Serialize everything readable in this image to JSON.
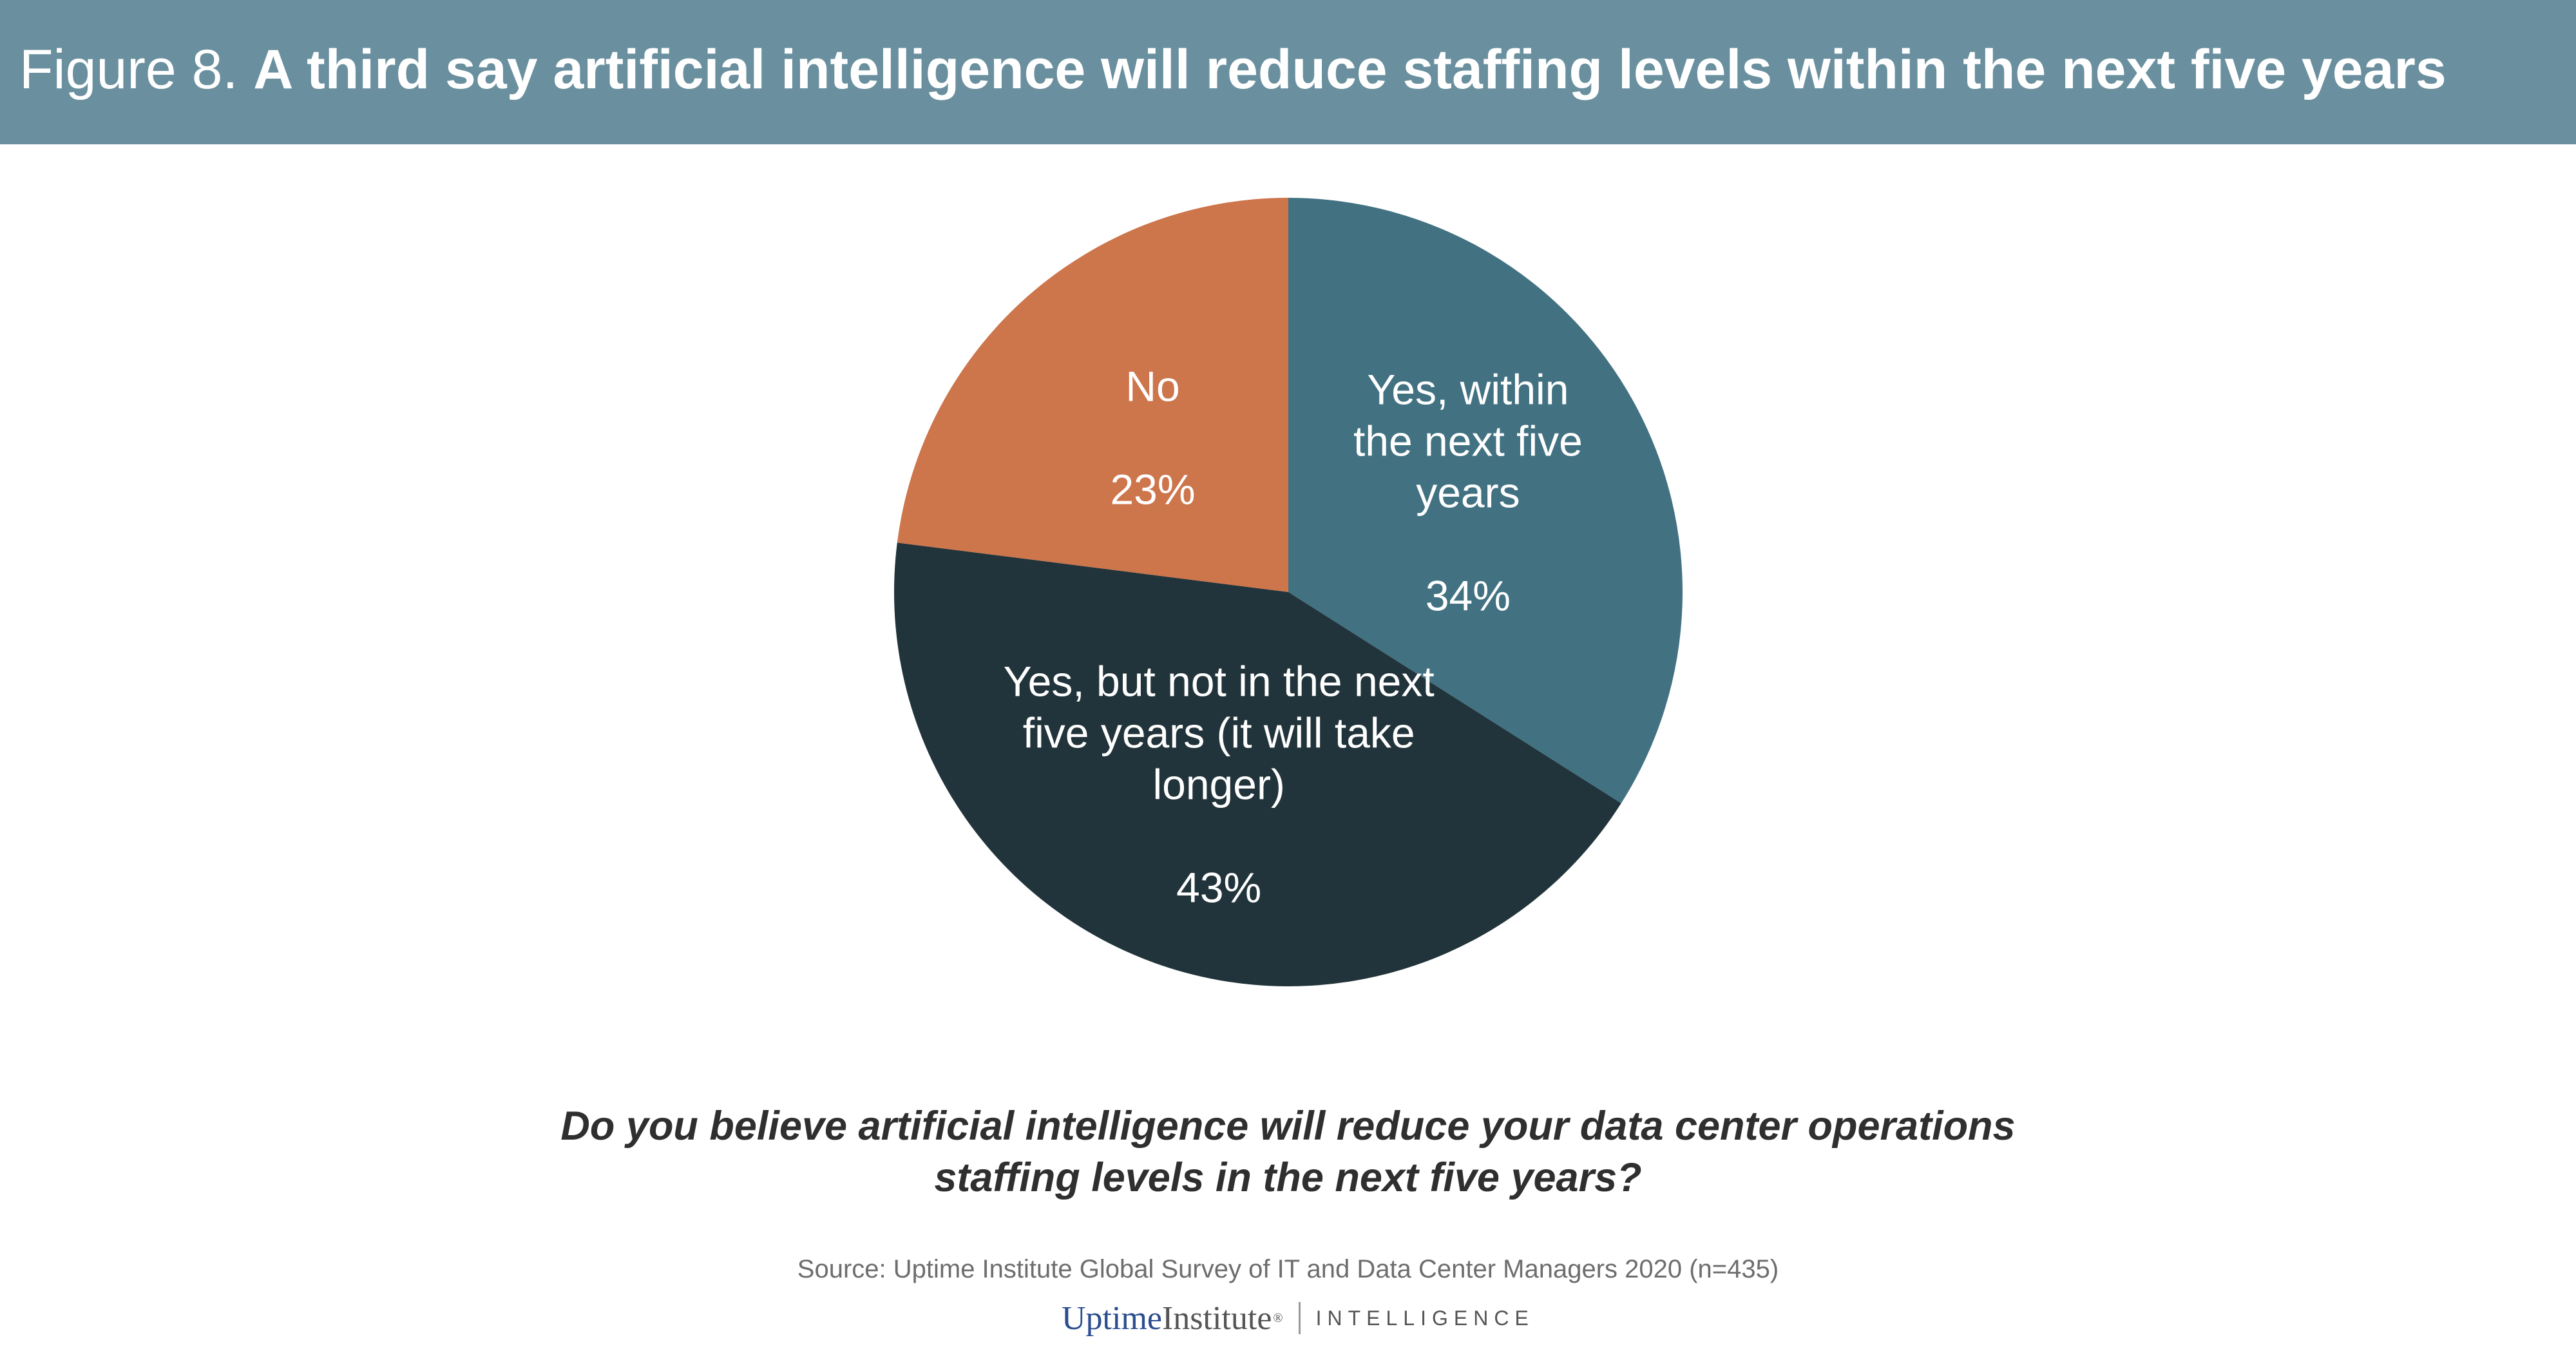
{
  "header": {
    "figure_prefix": "Figure 8. ",
    "headline": "A third say artificial intelligence will reduce staffing levels within the next five years"
  },
  "chart_data": {
    "type": "pie",
    "start_angle_deg": 0,
    "direction": "clockwise",
    "slices": [
      {
        "label_lines": [
          "Yes, within",
          "the next five",
          "years"
        ],
        "value": 34,
        "value_label": "34%",
        "color": "#427282"
      },
      {
        "label_lines": [
          "Yes, but not in the next",
          "five years (it will take",
          "longer)"
        ],
        "value": 43,
        "value_label": "43%",
        "color": "#22343b"
      },
      {
        "label_lines": [
          "No"
        ],
        "value": 23,
        "value_label": "23%",
        "color": "#cd754b"
      }
    ]
  },
  "question": {
    "line1": "Do you believe artificial intelligence will reduce your data center operations",
    "line2": "staffing levels in the next five years?"
  },
  "source": "Source: Uptime Institute Global Survey of IT and Data Center Managers 2020 (n=435)",
  "logo": {
    "uptime": "Uptime",
    "institute": "Institute",
    "registered": "®",
    "intelligence": "INTELLIGENCE"
  }
}
